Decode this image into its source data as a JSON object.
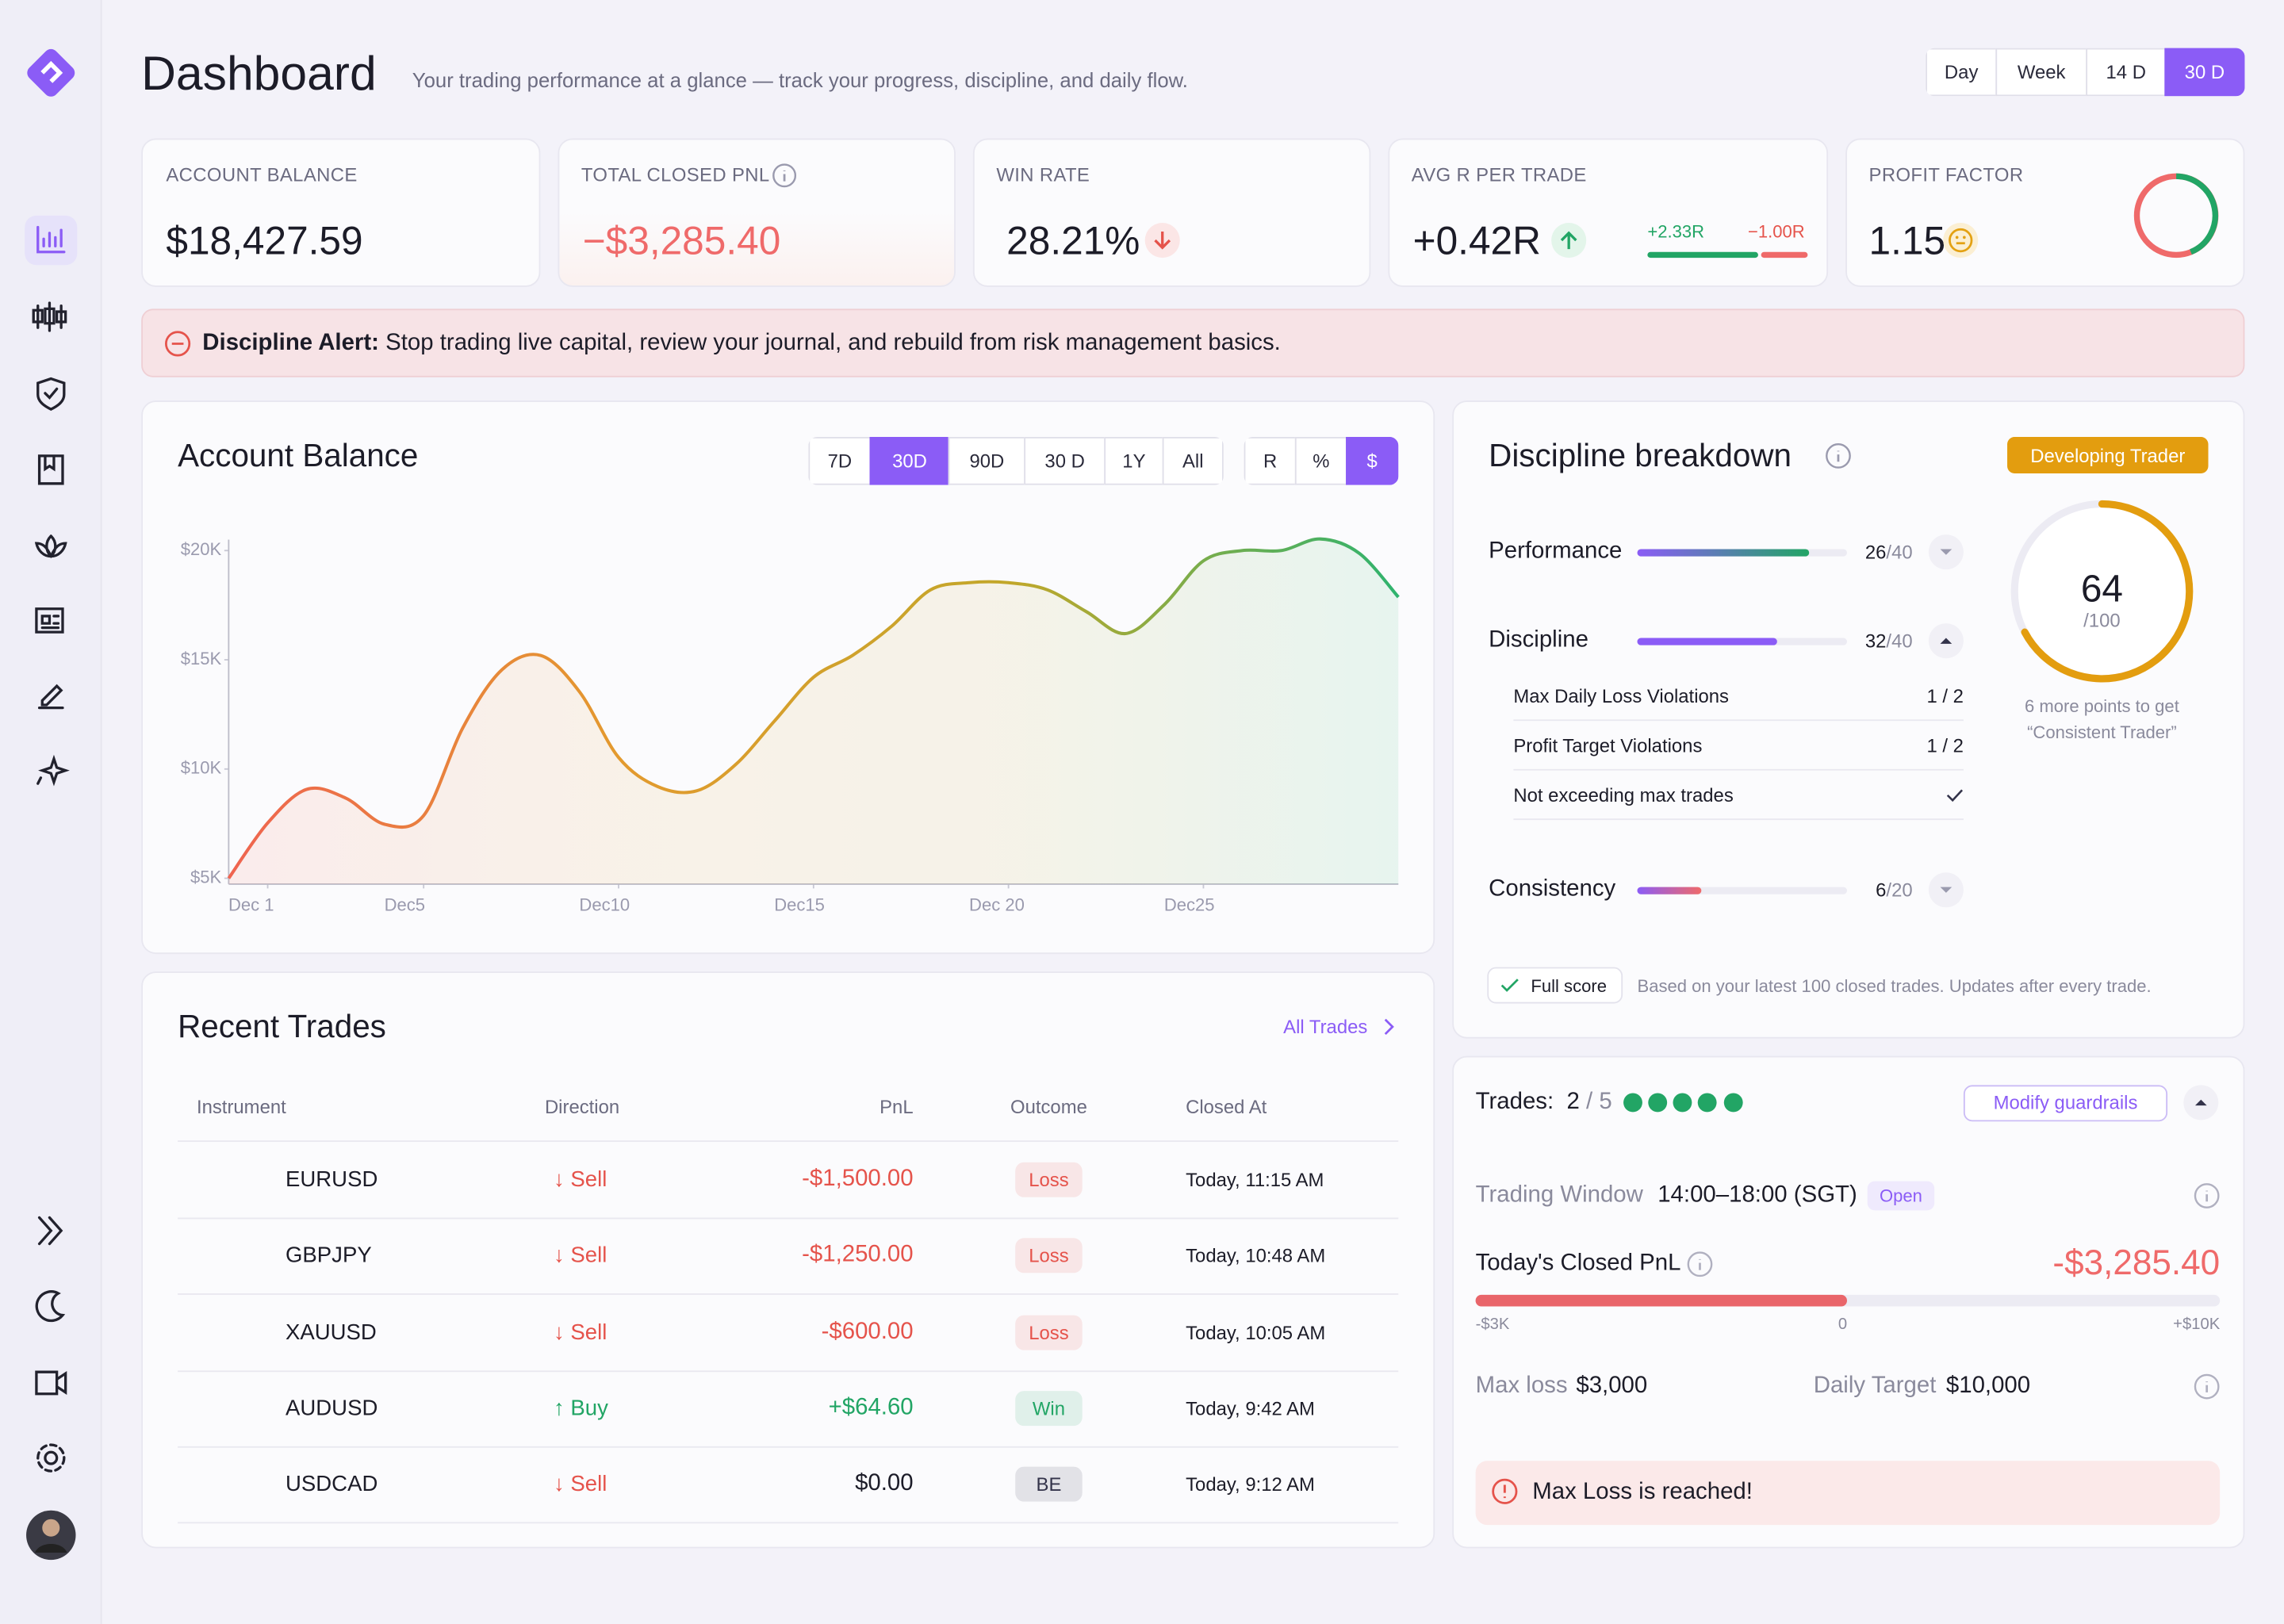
{
  "header": {
    "title": "Dashboard",
    "subtitle": "Your trading performance at a glance — track your progress, discipline, and daily flow.",
    "periods": [
      "Day",
      "Week",
      "14 D",
      "30 D"
    ]
  },
  "stats": [
    {
      "label": "ACCOUNT BALANCE",
      "value": "$18,427.59"
    },
    {
      "label": "TOTAL CLOSED PNL",
      "value": "−$3,285.40"
    },
    {
      "label": "WIN RATE",
      "value": "28.21%"
    },
    {
      "label": "AVG R PER TRADE",
      "value": "+0.42R",
      "best": "+2.33R",
      "worst": "−1.00R"
    },
    {
      "label": "PROFIT FACTOR",
      "value": "1.15"
    }
  ],
  "alert": {
    "title": "Discipline Alert:",
    "message": "Stop trading live capital, review your journal, and rebuild from risk management basics."
  },
  "account_balance": {
    "title": "Account Balance",
    "periods": [
      "7D",
      "30D",
      "90D",
      "30 D",
      "1Y",
      "All"
    ],
    "units": [
      "R",
      "%",
      "$"
    ]
  },
  "chart_data": {
    "type": "line",
    "x": [
      0,
      1,
      2,
      3,
      4,
      5,
      6,
      7,
      8,
      9,
      10,
      11,
      12,
      13,
      14,
      15,
      16,
      17,
      18,
      19,
      20,
      21,
      22,
      23,
      24,
      25,
      26,
      27,
      28,
      29,
      30
    ],
    "values": [
      5000,
      7530,
      9070,
      8670,
      7470,
      7870,
      11870,
      14530,
      15200,
      13530,
      10530,
      9200,
      9000,
      10200,
      12200,
      14200,
      15200,
      16530,
      18200,
      18530,
      18530,
      18200,
      17200,
      16200,
      17530,
      19530,
      20000,
      20000,
      20530,
      19870,
      17870
    ],
    "colors": [
      "#ef6450",
      "#e39a2e",
      "#c2a72a",
      "#2fb36e"
    ],
    "xlim": [
      0,
      30
    ],
    "xticks": [
      {
        "value": 1,
        "label": "Dec 1"
      },
      {
        "value": 5,
        "label": "Dec5"
      },
      {
        "value": 10,
        "label": "Dec10"
      },
      {
        "value": 15,
        "label": "Dec15"
      },
      {
        "value": 20,
        "label": "Dec 20"
      },
      {
        "value": 25,
        "label": "Dec25"
      }
    ],
    "ylim": [
      5000,
      20500
    ],
    "yticks": [
      {
        "value": 5000,
        "label": "$5K"
      },
      {
        "value": 10000,
        "label": "$10K"
      },
      {
        "value": 15000,
        "label": "$15K"
      },
      {
        "value": 20000,
        "label": "$20K"
      }
    ]
  },
  "recent_trades": {
    "title": "Recent Trades",
    "link": "All Trades",
    "columns": [
      "Instrument",
      "Direction",
      "PnL",
      "Outcome",
      "Closed At"
    ],
    "rows": [
      {
        "instrument": "EURUSD",
        "direction": "↓ Sell",
        "pnl": "-$1,500.00",
        "outcome": "Loss",
        "closed_at": "Today, 11:15 AM",
        "direction_color": "#e5534b",
        "pnl_color": "#e5534b",
        "outcome_color": "#e5534b"
      },
      {
        "instrument": "GBPJPY",
        "direction": "↓ Sell",
        "pnl": "-$1,250.00",
        "outcome": "Loss",
        "closed_at": "Today, 10:48 AM",
        "direction_color": "#e5534b",
        "pnl_color": "#e5534b",
        "outcome_color": "#e5534b"
      },
      {
        "instrument": "XAUUSD",
        "direction": "↓ Sell",
        "pnl": "-$600.00",
        "outcome": "Loss",
        "closed_at": "Today, 10:05 AM",
        "direction_color": "#e5534b",
        "pnl_color": "#e5534b",
        "outcome_color": "#e5534b"
      },
      {
        "instrument": "AUDUSD",
        "direction": "↑ Buy",
        "pnl": "+$64.60",
        "outcome": "Win",
        "closed_at": "Today, 9:42 AM",
        "direction_color": "#22a565",
        "pnl_color": "#22a565",
        "outcome_color": "#22a565"
      },
      {
        "instrument": "USDCAD",
        "direction": "↓ Sell",
        "pnl": "$0.00",
        "outcome": "BE",
        "closed_at": "Today, 9:12 AM",
        "direction_color": "#e5534b",
        "pnl_color": "#1c1c28",
        "outcome_color": "#33334a"
      }
    ]
  },
  "discipline": {
    "title": "Discipline breakdown",
    "badge": "Developing Trader",
    "categories": [
      {
        "name": "Performance",
        "score": "26",
        "max": "/40"
      },
      {
        "name": "Discipline",
        "score": "32",
        "max": "/40",
        "items": [
          {
            "label": "Max Daily Loss Violations",
            "value": "1 / 2"
          },
          {
            "label": "Profit Target Violations",
            "value": "1 / 2"
          },
          {
            "label": "Not exceeding max trades"
          }
        ]
      },
      {
        "name": "Consistency",
        "score": "6",
        "max": "/20"
      }
    ],
    "total": {
      "score": "64",
      "max": "/100",
      "note_1": "6 more points to get",
      "note_2": "“Consistent Trader”"
    },
    "footer": {
      "badge": "Full score",
      "note": "Based on your latest 100 closed trades. Updates after every trade."
    }
  },
  "guardrails": {
    "trades_label": "Trades:",
    "trades": "2",
    "trades_max": "/ 5",
    "button": "Modify guardrails",
    "window_label": "Trading Window",
    "window": "14:00–18:00 (SGT)",
    "window_status": "Open",
    "pnl_label": "Today's Closed PnL",
    "pnl": "-$3,285.40",
    "scale": [
      "-$3K",
      "0",
      "+$10K"
    ],
    "max_loss_label": "Max loss",
    "max_loss": "$3,000",
    "target_label": "Daily Target",
    "target": "$10,000",
    "alert": "Max Loss is reached!"
  }
}
